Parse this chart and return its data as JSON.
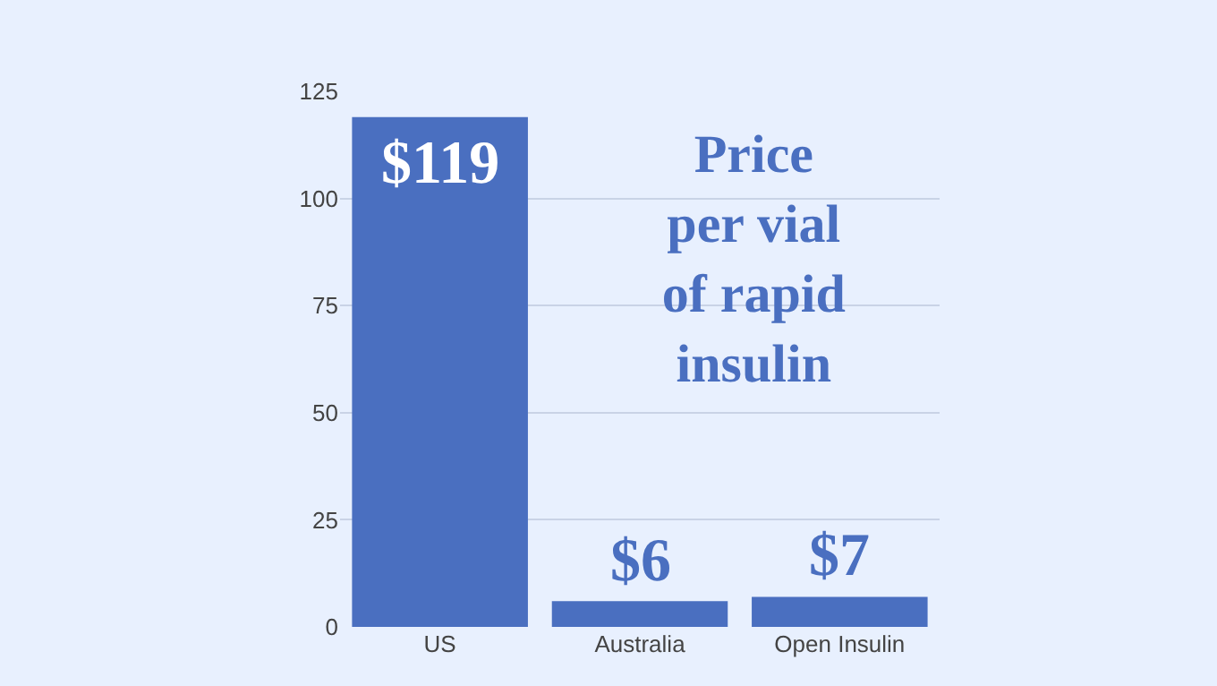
{
  "chart_data": {
    "type": "bar",
    "title": "Price per vial of rapid insulin",
    "categories": [
      "US",
      "Australia",
      "Open Insulin"
    ],
    "values": [
      119,
      6,
      7
    ],
    "value_labels": [
      "$119",
      "$6",
      "$7"
    ],
    "color": "#4a6fc0",
    "ylim": [
      0,
      125
    ],
    "yticks": [
      0,
      25,
      50,
      75,
      100,
      125
    ],
    "grid": "y"
  }
}
